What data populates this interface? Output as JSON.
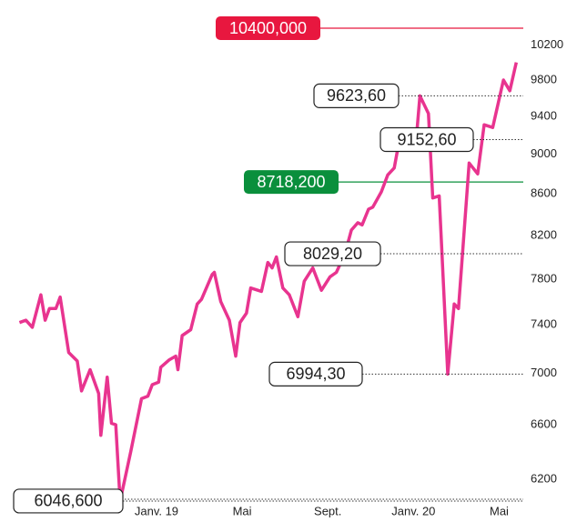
{
  "chart_data": {
    "type": "line",
    "color": "#e8348f",
    "yscale": "log",
    "ylim": [
      6040,
      10400
    ],
    "yticks": [
      6200,
      6600,
      7000,
      7400,
      7800,
      8200,
      8600,
      9000,
      9400,
      9800,
      10200
    ],
    "xlim": [
      -6.5,
      17
    ],
    "xticks": [
      {
        "value": 0,
        "label": "Janv. 19"
      },
      {
        "value": 4,
        "label": "Mai"
      },
      {
        "value": 8,
        "label": "Sept."
      },
      {
        "value": 12,
        "label": "Janv. 20"
      },
      {
        "value": 16,
        "label": "Mai"
      }
    ],
    "x": [
      -6.4,
      -6.1,
      -5.8,
      -5.4,
      -5.2,
      -5.0,
      -4.7,
      -4.5,
      -4.1,
      -3.7,
      -3.5,
      -3.1,
      -2.7,
      -2.6,
      -2.3,
      -2.1,
      -1.9,
      -1.7,
      -1.2,
      -0.7,
      -0.4,
      -0.2,
      0.1,
      0.2,
      0.6,
      0.9,
      1.0,
      1.2,
      1.6,
      1.9,
      2.1,
      2.6,
      2.7,
      3.0,
      3.4,
      3.7,
      3.9,
      4.2,
      4.4,
      4.9,
      5.2,
      5.4,
      5.6,
      5.9,
      6.2,
      6.6,
      6.9,
      7.3,
      7.7,
      8.1,
      8.4,
      8.8,
      9.1,
      9.4,
      9.6,
      9.9,
      10.1,
      10.5,
      10.8,
      11.1,
      11.3,
      11.7,
      12.1,
      12.3,
      12.7,
      12.9,
      13.2,
      13.6,
      13.9,
      14.1,
      14.6,
      15.0,
      15.3,
      15.7,
      16.2,
      16.5,
      16.8
    ],
    "values": [
      7420,
      7440,
      7380,
      7660,
      7440,
      7540,
      7540,
      7640,
      7170,
      7100,
      6860,
      7030,
      6840,
      6520,
      6970,
      6610,
      6600,
      6046.6,
      6400,
      6800,
      6820,
      6910,
      6930,
      7050,
      7110,
      7140,
      7030,
      7310,
      7360,
      7580,
      7620,
      7840,
      7860,
      7600,
      7440,
      7140,
      7420,
      7500,
      7720,
      7690,
      7950,
      7900,
      8000,
      7720,
      7660,
      7470,
      7780,
      7900,
      7700,
      7820,
      7860,
      8029.2,
      8250,
      8320,
      8300,
      8450,
      8470,
      8620,
      8790,
      8860,
      9100,
      9230,
      9080,
      9623.6,
      9430,
      8560,
      8580,
      6994.3,
      7580,
      7540,
      8910,
      8800,
      9310,
      9280,
      9800,
      9680,
      10000
    ],
    "reference_lines": [
      {
        "value": 10400,
        "label": "10400,000",
        "color": "#e8173f"
      },
      {
        "value": 8718.2,
        "label": "8718,200",
        "color": "#0a8f3c"
      }
    ],
    "callouts": [
      {
        "value": 9623.6,
        "label": "9623,60"
      },
      {
        "value": 9152.6,
        "label": "9152,60"
      },
      {
        "value": 8029.2,
        "label": "8029,20"
      },
      {
        "value": 6994.3,
        "label": "6994,30"
      },
      {
        "value": 6046.6,
        "label": "6046,600"
      }
    ]
  }
}
